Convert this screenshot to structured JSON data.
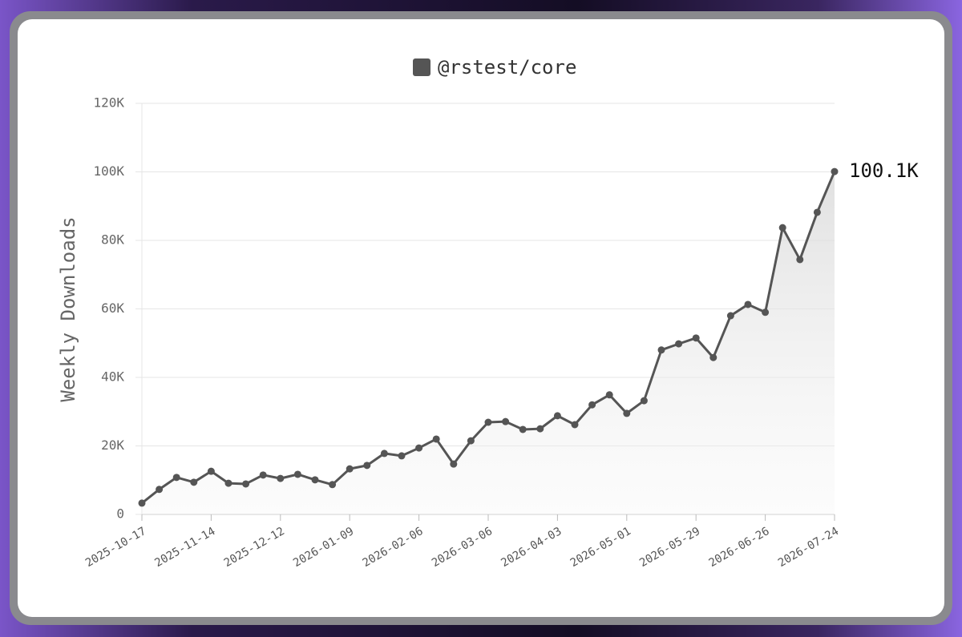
{
  "chart_data": {
    "type": "line",
    "y_label": "Weekly Downloads",
    "x": [
      "2025-10-17",
      "2025-10-24",
      "2025-10-31",
      "2025-11-07",
      "2025-11-14",
      "2025-11-21",
      "2025-11-28",
      "2025-12-05",
      "2025-12-12",
      "2025-12-19",
      "2025-12-26",
      "2026-01-02",
      "2026-01-09",
      "2026-01-16",
      "2026-01-23",
      "2026-01-30",
      "2026-02-06",
      "2026-02-13",
      "2026-02-20",
      "2026-02-27",
      "2026-03-06",
      "2026-03-13",
      "2026-03-20",
      "2026-03-27",
      "2026-04-03",
      "2026-04-10",
      "2026-04-17",
      "2026-04-24",
      "2026-05-01",
      "2026-05-08",
      "2026-05-15",
      "2026-05-22",
      "2026-05-29",
      "2026-06-05",
      "2026-06-12",
      "2026-06-19",
      "2026-06-26",
      "2026-07-03",
      "2026-07-10",
      "2026-07-17",
      "2026-07-24"
    ],
    "series": [
      {
        "name": "@rstest/core",
        "color": "#555555",
        "values": [
          3300,
          7300,
          10800,
          9400,
          12600,
          9100,
          8900,
          11500,
          10500,
          11700,
          10100,
          8700,
          13300,
          14300,
          17800,
          17100,
          19400,
          22000,
          14700,
          21500,
          26900,
          27100,
          24800,
          25000,
          28800,
          26200,
          32000,
          34900,
          29500,
          33200,
          48000,
          49800,
          51500,
          45800,
          58000,
          61300,
          59000,
          83700,
          74400,
          88200,
          100100
        ],
        "value_labels": [
          null,
          null,
          null,
          null,
          null,
          null,
          null,
          null,
          null,
          null,
          null,
          null,
          null,
          null,
          null,
          null,
          null,
          null,
          null,
          null,
          null,
          null,
          null,
          null,
          null,
          null,
          null,
          null,
          null,
          null,
          null,
          null,
          null,
          null,
          null,
          null,
          null,
          null,
          null,
          null,
          "100.1K"
        ]
      }
    ],
    "xlim": [
      "2025-10-17",
      "2026-07-24"
    ],
    "xticks": [
      "2025-10-17",
      "2025-11-14",
      "2025-12-12",
      "2026-01-09",
      "2026-02-06",
      "2026-03-06",
      "2026-04-03",
      "2026-05-01",
      "2026-05-29",
      "2026-06-26",
      "2026-07-24"
    ],
    "ylim": [
      0,
      120000
    ],
    "yticks": [
      0,
      {
        "value": 20000,
        "label": "20K"
      },
      {
        "value": 40000,
        "label": "40K"
      },
      {
        "value": 60000,
        "label": "60K"
      },
      {
        "value": 80000,
        "label": "80K"
      },
      {
        "value": 100000,
        "label": "100K"
      },
      {
        "value": 120000,
        "label": "120K"
      }
    ],
    "grid": true,
    "legend": "top",
    "area": true
  }
}
